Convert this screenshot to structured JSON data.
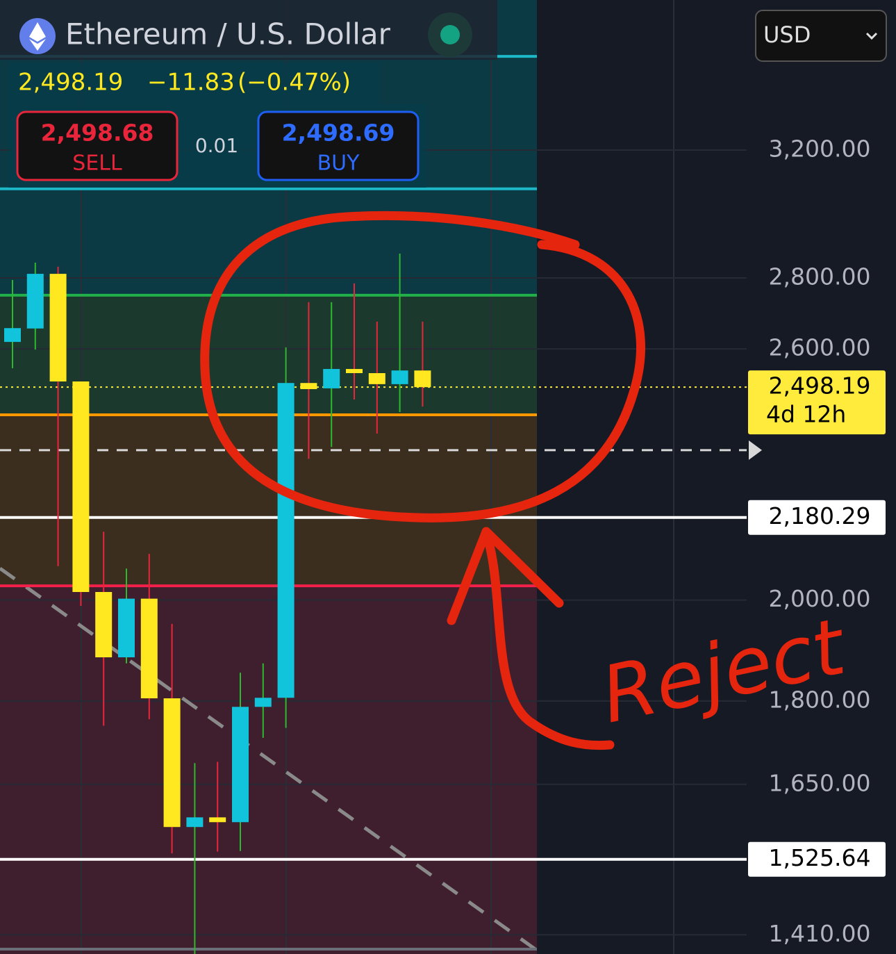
{
  "chart_data": {
    "type": "candlestick",
    "title": "Ethereum / U.S. Dollar",
    "quote": {
      "price": "2,498.19",
      "change": "−11.83",
      "change_pct": "(−0.47%)"
    },
    "sell": {
      "price": "2,498.68",
      "label": "SELL"
    },
    "spread": "0.01",
    "buy": {
      "price": "2,498.69",
      "label": "BUY"
    },
    "currency": "USD",
    "annotation": "Reject",
    "log_scale": true,
    "grid": true,
    "up_color": "#12c3dc",
    "down_color": "#ffe81f",
    "wick_up_color": "#2eb82e",
    "wick_down_color": "#e8253a",
    "open": [
      2619,
      2656,
      2812,
      2513,
      2017,
      1884,
      2003,
      1805,
      1578,
      1594,
      1586,
      1789,
      1806,
      2509,
      2495,
      2546,
      2535,
      2506,
      2542
    ],
    "high": [
      2794,
      2845,
      2833,
      2513,
      2148,
      2067,
      2099,
      1951,
      1687,
      1689,
      1854,
      1872,
      2604,
      2730,
      2730,
      2784,
      2675,
      2872,
      2675
    ],
    "low": [
      2548,
      2598,
      2072,
      1988,
      1754,
      1872,
      1766,
      1535,
      1382,
      1538,
      1539,
      1732,
      1750,
      2318,
      2347,
      2466,
      2380,
      2434,
      2448
    ],
    "close": [
      2657,
      2812,
      2513,
      2017,
      1884,
      2003,
      1805,
      1578,
      1594,
      1586,
      1789,
      1806,
      2509,
      2493,
      2546,
      2535,
      2506,
      2542,
      2498.19
    ],
    "ylim": [
      1382,
      3743
    ],
    "yticks": [
      {
        "value": 3200,
        "label": "3,200.00"
      },
      {
        "value": 2800,
        "label": "2,800.00"
      },
      {
        "value": 2600,
        "label": "2,600.00"
      },
      {
        "value": 2000,
        "label": "2,000.00"
      },
      {
        "value": 1800,
        "label": "1,800.00"
      },
      {
        "value": 1650,
        "label": "1,650.00"
      },
      {
        "value": 1410,
        "label": "1,410.00"
      }
    ],
    "bands": [
      {
        "from": 2750,
        "to": 3743,
        "color": "#0c3a44"
      },
      {
        "from": 2427,
        "to": 2750,
        "color": "#1b3a2d"
      },
      {
        "from": 2030,
        "to": 2427,
        "color": "#3c2e1f"
      },
      {
        "from": 1382,
        "to": 2030,
        "color": "#3f1f2d"
      }
    ],
    "levels": [
      {
        "value": 3529,
        "color": "#1cb8c8"
      },
      {
        "value": 3073,
        "color": "#1cb8c8"
      },
      {
        "value": 2750,
        "color": "#22b04a"
      },
      {
        "value": 2427,
        "color": "#ff9800"
      },
      {
        "value": 2030,
        "color": "#f2204a"
      },
      {
        "value": 2180.29,
        "label": "2,180.29",
        "color": "#ffe4c4"
      },
      {
        "value": 1525.64,
        "label": "1,525.64",
        "color": "#ffd6d6"
      }
    ],
    "pending": {
      "value": 2339,
      "color": "#d8d8d8"
    },
    "last_price": {
      "value": 2498.19,
      "label": "2,498.19",
      "countdown": "4d 12h",
      "color": "#ffeb3b"
    }
  }
}
